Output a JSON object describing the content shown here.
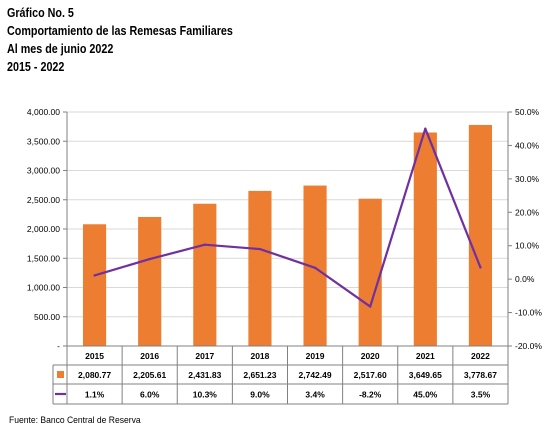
{
  "header": {
    "line1": "Gráfico No. 5",
    "line2": "Comportamiento de las Remesas Familiares",
    "line3": "Al mes de junio 2022",
    "line4": "2015 - 2022"
  },
  "source": "Fuente: Banco Central de Reserva",
  "colors": {
    "bar": "#ED7D31",
    "line": "#7030A0",
    "grid": "#D9D9D9",
    "table": "#808080"
  },
  "chart_data": {
    "type": "bar",
    "categories": [
      "2015",
      "2016",
      "2017",
      "2018",
      "2019",
      "2020",
      "2021",
      "2022"
    ],
    "series": [
      {
        "kind": "bar",
        "axis": "left",
        "values": [
          2080.77,
          2205.61,
          2431.83,
          2651.23,
          2742.49,
          2517.6,
          3649.65,
          3778.67
        ],
        "labels": [
          "2,080.77",
          "2,205.61",
          "2,431.83",
          "2,651.23",
          "2,742.49",
          "2,517.60",
          "3,649.65",
          "3,778.67"
        ]
      },
      {
        "kind": "line",
        "axis": "right",
        "values": [
          1.1,
          6.0,
          10.3,
          9.0,
          3.4,
          -8.2,
          45.0,
          3.5
        ],
        "labels": [
          "1.1%",
          "6.0%",
          "10.3%",
          "9.0%",
          "3.4%",
          "-8.2%",
          "45.0%",
          "3.5%"
        ]
      }
    ],
    "y_left": {
      "ylim": [
        0,
        4000
      ],
      "ticks": [
        0,
        500,
        1000,
        1500,
        2000,
        2500,
        3000,
        3500,
        4000
      ],
      "tick_labels": [
        "-",
        "500.00",
        "1,000.00",
        "1,500.00",
        "2,000.00",
        "2,500.00",
        "3,000.00",
        "3,500.00",
        "4,000.00"
      ]
    },
    "y_right": {
      "ylim": [
        -20,
        50
      ],
      "ticks": [
        -20,
        -10,
        0,
        10,
        20,
        30,
        40,
        50
      ],
      "tick_labels": [
        "-20.0%",
        "-10.0%",
        "0.0%",
        "10.0%",
        "20.0%",
        "30.0%",
        "40.0%",
        "50.0%"
      ]
    },
    "grid": true,
    "legend": "data table below chart"
  }
}
